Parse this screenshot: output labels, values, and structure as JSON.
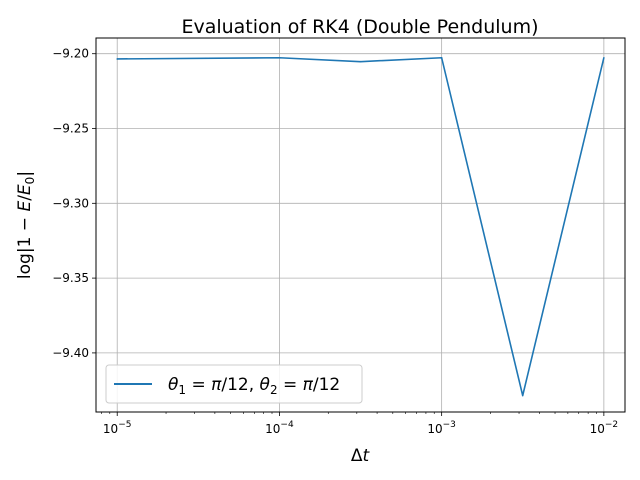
{
  "chart_data": {
    "type": "line",
    "title": "Evaluation of RK4 (Double Pendulum)",
    "xlabel": "Δt",
    "ylabel": "log|1 − E/E₀|",
    "xscale": "log",
    "xlim": [
      7.4e-06,
      0.0135
    ],
    "ylim": [
      -9.4395,
      -9.1895
    ],
    "grid": true,
    "legend_loc": "lower-left",
    "x_ticks": [
      {
        "value": 1e-05,
        "base": "10",
        "exp": "−5"
      },
      {
        "value": 0.0001,
        "base": "10",
        "exp": "−4"
      },
      {
        "value": 0.001,
        "base": "10",
        "exp": "−3"
      },
      {
        "value": 0.01,
        "base": "10",
        "exp": "−2"
      }
    ],
    "y_ticks": [
      {
        "value": -9.2,
        "label": "−9.20"
      },
      {
        "value": -9.25,
        "label": "−9.25"
      },
      {
        "value": -9.3,
        "label": "−9.30"
      },
      {
        "value": -9.35,
        "label": "−9.35"
      },
      {
        "value": -9.4,
        "label": "−9.40"
      }
    ],
    "series": [
      {
        "name": "θ1 = π/12, θ2 = π/12",
        "color": "#1f77b4",
        "x": [
          1e-05,
          0.0001,
          0.000316,
          0.001,
          0.00316,
          0.01
        ],
        "y": [
          -9.2035,
          -9.2027,
          -9.2053,
          -9.2027,
          -9.4285,
          -9.2027
        ]
      }
    ]
  }
}
